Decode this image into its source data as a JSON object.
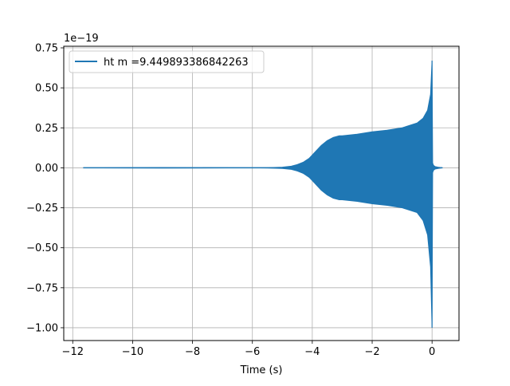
{
  "chart_data": {
    "type": "line",
    "title": "",
    "xlabel": "Time (s)",
    "ylabel": "",
    "y_offset_label": "1e−19",
    "xlim": [
      -12.3,
      0.9
    ],
    "ylim": [
      -1.08,
      0.76
    ],
    "grid": true,
    "legend_position": "upper-left",
    "x_ticks": [
      -12,
      -10,
      -8,
      -6,
      -4,
      -2,
      0
    ],
    "x_tick_labels": [
      "−12",
      "−10",
      "−8",
      "−6",
      "−4",
      "−2",
      "0"
    ],
    "y_ticks": [
      0.75,
      0.5,
      0.25,
      0.0,
      -0.25,
      -0.5,
      -0.75,
      -1.0
    ],
    "y_tick_labels": [
      "0.75",
      "0.50",
      "0.25",
      "0.00",
      "−0.25",
      "−0.50",
      "−0.75",
      "−1.00"
    ],
    "series": [
      {
        "name": "ht m =9.449893386842263",
        "color": "#1f77b4",
        "envelope": {
          "x": [
            -11.65,
            -9.0,
            -6.0,
            -5.5,
            -5.0,
            -4.7,
            -4.5,
            -4.3,
            -4.1,
            -3.9,
            -3.7,
            -3.5,
            -3.3,
            -3.1,
            -3.0,
            -2.5,
            -2.0,
            -1.5,
            -1.0,
            -0.5,
            -0.3,
            -0.15,
            -0.05,
            0.0
          ],
          "upper": [
            0.0,
            0.002,
            0.0,
            0.001,
            0.004,
            0.01,
            0.02,
            0.035,
            0.06,
            0.1,
            0.14,
            0.17,
            0.19,
            0.2,
            0.2,
            0.21,
            0.225,
            0.235,
            0.25,
            0.28,
            0.31,
            0.36,
            0.46,
            0.67
          ],
          "lower": [
            0.0,
            -0.002,
            0.0,
            -0.001,
            -0.004,
            -0.01,
            -0.02,
            -0.035,
            -0.06,
            -0.1,
            -0.14,
            -0.17,
            -0.19,
            -0.2,
            -0.2,
            -0.21,
            -0.225,
            -0.235,
            -0.25,
            -0.28,
            -0.33,
            -0.42,
            -0.62,
            -1.0
          ]
        },
        "ringdown": {
          "x": [
            0.0,
            0.02,
            0.05,
            0.1,
            0.2,
            0.35
          ],
          "upper": [
            0.67,
            0.03,
            0.015,
            0.008,
            0.004,
            0.0
          ],
          "lower": [
            -1.0,
            -0.03,
            -0.015,
            -0.008,
            -0.004,
            0.0
          ]
        }
      }
    ]
  }
}
